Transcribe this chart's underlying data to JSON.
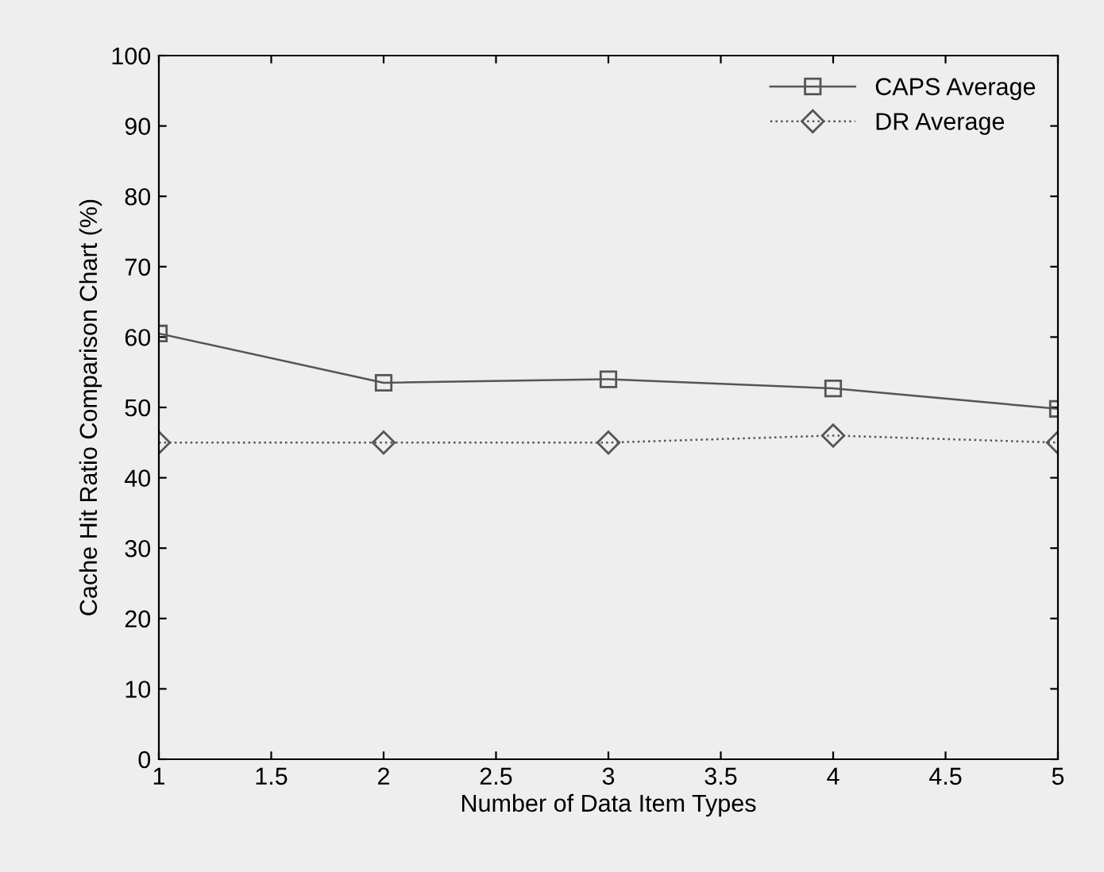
{
  "chart_data": {
    "type": "line",
    "xlabel": "Number of Data Item Types",
    "ylabel": "Cache Hit Ratio Comparison Chart (%)",
    "x": [
      1,
      2,
      3,
      4,
      5
    ],
    "series": [
      {
        "name": "CAPS Average",
        "color": "#555555",
        "values": [
          60.5,
          53.5,
          54,
          52.7,
          49.8
        ],
        "marker": "square",
        "line_style": "solid"
      },
      {
        "name": "DR Average",
        "color": "#555555",
        "values": [
          45,
          45,
          45,
          46,
          45
        ],
        "marker": "diamond",
        "line_style": "dotted"
      }
    ],
    "xlim": [
      1,
      5
    ],
    "ylim": [
      0,
      100
    ],
    "xticks": [
      1,
      1.5,
      2,
      2.5,
      3,
      3.5,
      4,
      4.5,
      5
    ],
    "yticks": [
      0,
      10,
      20,
      30,
      40,
      50,
      60,
      70,
      80,
      90,
      100
    ],
    "grid": false,
    "legend": "top right"
  }
}
